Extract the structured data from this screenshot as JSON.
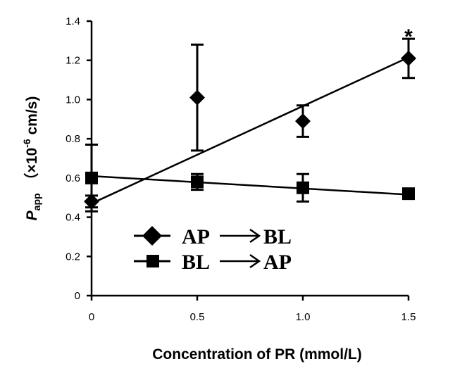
{
  "chart_data": {
    "type": "line",
    "x": [
      0,
      0.5,
      1.0,
      1.5
    ],
    "xtick_labels": [
      "0",
      "0.5",
      "1.0",
      "1.5"
    ],
    "xlim": [
      0,
      1.5
    ],
    "ylim": [
      0,
      1.4
    ],
    "yticks": [
      0,
      0.2,
      0.4,
      0.6,
      0.8,
      1.0,
      1.2,
      1.4
    ],
    "ytick_labels": [
      "0",
      "0.2",
      "0.4",
      "0.6",
      "0.8",
      "1.0",
      "1.2",
      "1.4"
    ],
    "xlabel": "Concentration of PR (mmol/L)",
    "ylabel": {
      "symbol": "P",
      "subscript": "app",
      "unit_open": "（×10",
      "unit_exp": "-6",
      "unit_close": " cm/s)"
    },
    "grid": false,
    "legend_position": "bottom-left",
    "series": [
      {
        "name_from": "AP",
        "name_to": "BL",
        "marker": "diamond",
        "values": [
          0.48,
          1.01,
          0.89,
          1.21
        ],
        "errors": [
          0.03,
          0.27,
          0.08,
          0.1
        ],
        "trendline": [
          0.47,
          1.215
        ]
      },
      {
        "name_from": "BL",
        "name_to": "AP",
        "marker": "square",
        "values": [
          0.6,
          0.58,
          0.55,
          0.52
        ],
        "errors": [
          0.17,
          0.04,
          0.07,
          0.02
        ],
        "trendline": [
          0.61,
          0.515
        ]
      }
    ],
    "annotations": [
      {
        "text": "*",
        "x": 1.5,
        "y": 1.35
      }
    ]
  }
}
